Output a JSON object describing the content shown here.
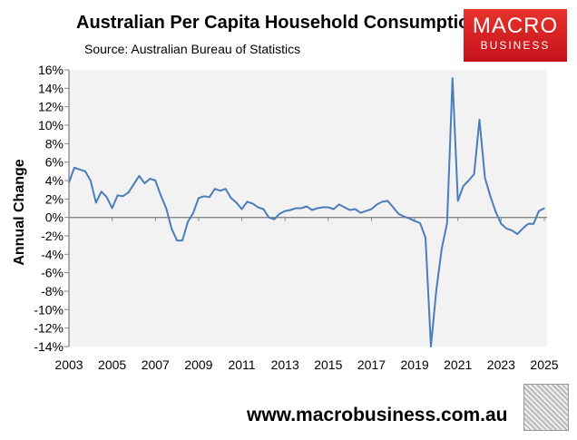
{
  "chart_data": {
    "type": "line",
    "title": "Australian Per Capita Household Consumption",
    "subtitle": "Source: Australian Bureau of Statistics",
    "xlabel": "",
    "ylabel": "Annual Change",
    "xlim": [
      2003,
      2025
    ],
    "ylim": [
      -14,
      16
    ],
    "xticks": [
      "2003",
      "2005",
      "2007",
      "2009",
      "2011",
      "2013",
      "2015",
      "2017",
      "2019",
      "2021",
      "2023",
      "2025"
    ],
    "yticks": [
      "16%",
      "14%",
      "12%",
      "10%",
      "8%",
      "6%",
      "4%",
      "2%",
      "0%",
      "-2%",
      "-4%",
      "-6%",
      "-8%",
      "-10%",
      "-12%",
      "-14%"
    ],
    "x_start": 2003,
    "x_step": 0.25,
    "series": [
      {
        "name": "Annual Change",
        "color": "#4a7ebb",
        "values": [
          3.8,
          5.4,
          5.2,
          5.0,
          4.0,
          1.6,
          2.8,
          2.2,
          1.0,
          2.4,
          2.3,
          2.7,
          3.6,
          4.5,
          3.7,
          4.2,
          4.0,
          2.4,
          1.0,
          -1.2,
          -2.5,
          -2.5,
          -0.5,
          0.5,
          2.1,
          2.3,
          2.2,
          3.1,
          2.9,
          3.1,
          2.1,
          1.6,
          0.9,
          1.7,
          1.5,
          1.1,
          0.9,
          0.0,
          -0.2,
          0.4,
          0.7,
          0.8,
          1.0,
          1.0,
          1.2,
          0.8,
          1.0,
          1.1,
          1.1,
          0.9,
          1.4,
          1.1,
          0.8,
          0.9,
          0.5,
          0.7,
          0.9,
          1.4,
          1.7,
          1.8,
          1.1,
          0.4,
          0.1,
          -0.1,
          -0.4,
          -0.6,
          -2.2,
          -14.0,
          -7.9,
          -3.4,
          -0.6,
          15.1,
          1.8,
          3.4,
          4.0,
          4.7,
          10.6,
          4.3,
          2.3,
          0.6,
          -0.7,
          -1.2,
          -1.4,
          -1.8,
          -1.2,
          -0.7,
          -0.7,
          0.7,
          1.0
        ]
      }
    ],
    "grid": false,
    "legend": "none"
  },
  "logo": {
    "line1": "MACRO",
    "line2": "BUSINESS"
  },
  "footer": "www.macrobusiness.com.au"
}
